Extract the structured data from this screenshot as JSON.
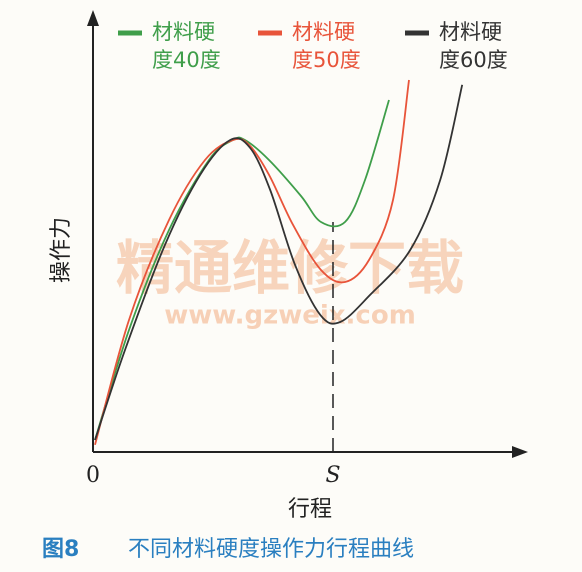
{
  "chart_data": {
    "type": "line",
    "watermark": "精通维修下载",
    "watermark_url": "www.gzweix.com",
    "x_label": "行程",
    "y_label": "操作力",
    "figure_number": "图8",
    "caption": "不同材料硬度操作力行程曲线",
    "xlim": [
      0,
      10.8
    ],
    "ylim": [
      0,
      10.9
    ],
    "xticks": [
      0,
      {
        "value": 6,
        "label": "S"
      }
    ],
    "series": [
      {
        "name": "材料硬度40度",
        "color": "#3f9e4a",
        "x": [
          0.05,
          0.9,
          1.9,
          2.9,
          3.5,
          3.8,
          4.4,
          5.2,
          5.7,
          6.3,
          6.8,
          7.4
        ],
        "values": [
          0.3,
          3.05,
          5.55,
          7.3,
          7.8,
          7.8,
          7.3,
          6.4,
          5.75,
          5.75,
          6.8,
          8.8
        ]
      },
      {
        "name": "材料硬度50度",
        "color": "#e8543a",
        "x": [
          0.05,
          0.9,
          1.9,
          2.8,
          3.5,
          3.9,
          4.4,
          5.0,
          5.7,
          6.3,
          6.9,
          7.5,
          7.9
        ],
        "values": [
          0.18,
          3.3,
          5.8,
          7.3,
          7.8,
          7.68,
          6.93,
          5.68,
          4.55,
          4.25,
          4.8,
          6.3,
          9.3
        ]
      },
      {
        "name": "材料硬度60度",
        "color": "#333333",
        "x": [
          0.05,
          0.8,
          1.8,
          2.68,
          3.43,
          3.93,
          4.43,
          5.05,
          5.68,
          6.18,
          6.93,
          7.93,
          8.68,
          9.23
        ],
        "values": [
          0.3,
          2.55,
          5.18,
          6.93,
          7.8,
          7.6,
          6.55,
          4.68,
          3.43,
          3.25,
          3.93,
          5.05,
          6.8,
          9.18
        ]
      }
    ]
  }
}
